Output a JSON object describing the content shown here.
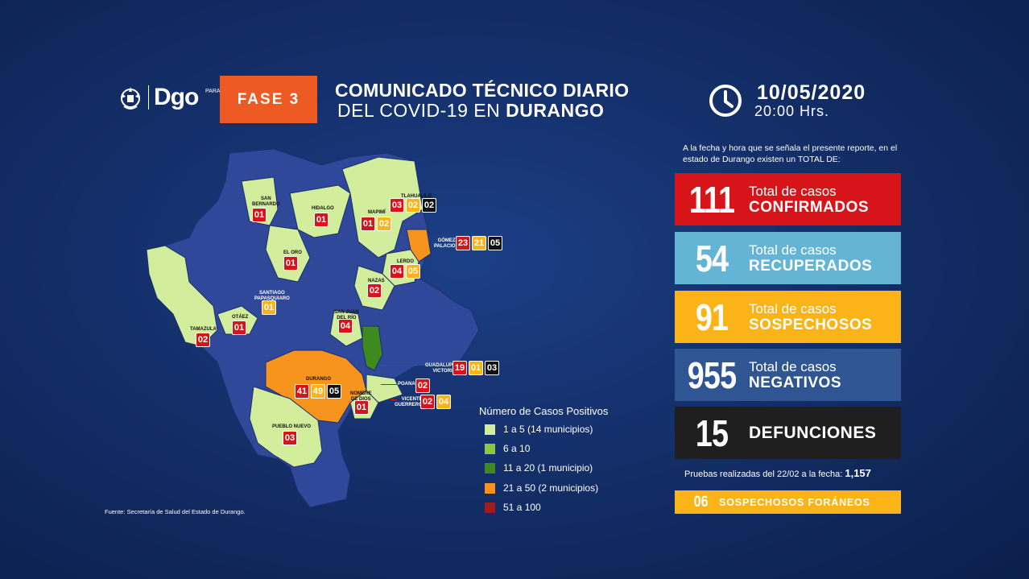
{
  "header": {
    "logo_small": "PARA TODOS",
    "logo_text": "Dgo",
    "phase": "FASE 3",
    "title_line1": "COMUNICADO TÉCNICO DIARIO",
    "title_line2_prefix": "DEL COVID-19 EN ",
    "title_line2_bold": "DURANGO",
    "date": "10/05/2020",
    "time": "20:00 Hrs."
  },
  "intro": "A la fecha y hora que se señala el presente reporte, en el estado de Durango existen un TOTAL DE:",
  "stats": [
    {
      "value": "111",
      "line1": "Total de casos",
      "line2": "CONFIRMADOS",
      "color": "#d8141b"
    },
    {
      "value": "54",
      "line1": "Total de casos",
      "line2": "RECUPERADOS",
      "color": "#64b4d6"
    },
    {
      "value": "91",
      "line1": "Total de casos",
      "line2": "SOSPECHOSOS",
      "color": "#fbb417"
    },
    {
      "value": "955",
      "line1": "Total de casos",
      "line2": "NEGATIVOS",
      "color": "#2f5692"
    },
    {
      "value": "15",
      "line1": "",
      "line2": "DEFUNCIONES",
      "color": "#1f1f1f"
    }
  ],
  "pruebas": {
    "label": "Pruebas realizadas del 22/02 a la fecha: ",
    "value": "1,157"
  },
  "foraneos": {
    "value": "06",
    "label": "SOSPECHOSOS FORÁNEOS"
  },
  "legend": {
    "title": "Número de Casos Positivos",
    "items": [
      {
        "label": "1 a 5  (14 municipios)",
        "color": "#d2ed9c"
      },
      {
        "label": "6 a 10",
        "color": "#8dc63f"
      },
      {
        "label": "11 a 20  (1 municipio)",
        "color": "#3f8a1e"
      },
      {
        "label": "21 a 50  (2 municipios)",
        "color": "#f7941d"
      },
      {
        "label": "51 a 100",
        "color": "#9e1c1c"
      }
    ]
  },
  "source": "Fuente: Secretaría de Salud del Estado de Durango.",
  "map": {
    "colors": {
      "default": "#2f489a",
      "light": "#d2ed9c",
      "green": "#3f8a1e",
      "orange": "#f7941d"
    },
    "municipios": {
      "san_bernardo": {
        "name": "SAN\nBERNARDO",
        "confirmados": "01"
      },
      "hidalgo": {
        "name": "HIDALGO",
        "confirmados": "01"
      },
      "tlahualilo": {
        "name": "TLAHUALILO",
        "confirmados": "03",
        "sospechosos": "02",
        "defunciones": "02"
      },
      "mapimi": {
        "name": "MAPIMÍ",
        "confirmados": "01",
        "sospechosos": "02"
      },
      "gomez_palacio": {
        "name": "GÓMEZ\nPALACIO",
        "confirmados": "23",
        "sospechosos": "21",
        "defunciones": "05"
      },
      "el_oro": {
        "name": "EL ORO",
        "confirmados": "01"
      },
      "lerdo": {
        "name": "LERDO",
        "confirmados": "04",
        "sospechosos": "05"
      },
      "nazas": {
        "name": "NAZAS",
        "confirmados": "02"
      },
      "santiago": {
        "name": "SANTIAGO\nPAPASQUIARO",
        "sospechosos": "01"
      },
      "san_juan_del_rio": {
        "name": "SAN JUAN\nDEL RÍO",
        "confirmados": "04"
      },
      "otaez": {
        "name": "OTÁEZ",
        "confirmados": "01"
      },
      "tamazula": {
        "name": "TAMAZULA",
        "confirmados": "02"
      },
      "guadalupe_victoria": {
        "name": "GUADALUPE\nVICTORIA",
        "confirmados": "19",
        "sospechosos": "01",
        "defunciones": "03"
      },
      "durango": {
        "name": "DURANGO",
        "confirmados": "41",
        "sospechosos": "49",
        "defunciones": "05"
      },
      "poanas": {
        "name": "POANAS",
        "confirmados": "02"
      },
      "nombre_de_dios": {
        "name": "NOMBRE\nDE DIOS",
        "confirmados": "01"
      },
      "vicente_guerrero": {
        "name": "VICENTE\nGUERRERO",
        "confirmados": "02",
        "sospechosos": "04"
      },
      "pueblo_nuevo": {
        "name": "PUEBLO NUEVO",
        "confirmados": "03"
      }
    }
  }
}
